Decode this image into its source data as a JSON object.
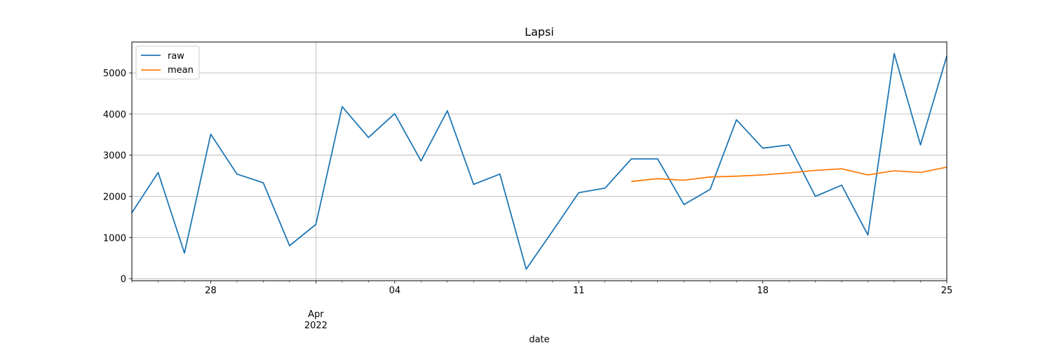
{
  "chart_data": {
    "type": "line",
    "title": "Lapsi",
    "xlabel": "date",
    "ylabel": "",
    "ylim": [
      -50,
      5750
    ],
    "yticks": [
      0,
      1000,
      2000,
      3000,
      4000,
      5000
    ],
    "x": [
      "2022-03-25",
      "2022-03-26",
      "2022-03-27",
      "2022-03-28",
      "2022-03-29",
      "2022-03-30",
      "2022-03-31",
      "2022-04-01",
      "2022-04-02",
      "2022-04-03",
      "2022-04-04",
      "2022-04-05",
      "2022-04-06",
      "2022-04-07",
      "2022-04-08",
      "2022-04-09",
      "2022-04-10",
      "2022-04-11",
      "2022-04-12",
      "2022-04-13",
      "2022-04-14",
      "2022-04-15",
      "2022-04-16",
      "2022-04-17",
      "2022-04-18",
      "2022-04-19",
      "2022-04-20",
      "2022-04-21",
      "2022-04-22",
      "2022-04-23",
      "2022-04-24",
      "2022-04-25"
    ],
    "xticks_major": [
      {
        "index": 3,
        "label": "28"
      },
      {
        "index": 7,
        "label": "Apr",
        "sublabel": "2022"
      },
      {
        "index": 10,
        "label": "04"
      },
      {
        "index": 17,
        "label": "11"
      },
      {
        "index": 24,
        "label": "18"
      },
      {
        "index": 31,
        "label": "25"
      }
    ],
    "vertical_gridline_index": 7,
    "grid": "y",
    "legend": {
      "location": "upper-left",
      "entries": [
        "raw",
        "mean"
      ]
    },
    "series": [
      {
        "name": "raw",
        "color": "#1f77b4",
        "values": [
          1600,
          2580,
          620,
          3510,
          2540,
          2330,
          800,
          1320,
          4180,
          3430,
          4010,
          2860,
          4080,
          2290,
          2540,
          230,
          1150,
          2090,
          2200,
          2910,
          2910,
          1800,
          2170,
          3860,
          3170,
          3250,
          2000,
          2270,
          1060,
          5470,
          3250,
          5410
        ]
      },
      {
        "name": "mean",
        "color": "#ff7f0e",
        "values": [
          null,
          null,
          null,
          null,
          null,
          null,
          null,
          null,
          null,
          null,
          null,
          null,
          null,
          null,
          null,
          null,
          null,
          null,
          null,
          2360,
          2430,
          2390,
          2470,
          2490,
          2520,
          2570,
          2630,
          2670,
          2520,
          2620,
          2580,
          2710
        ]
      }
    ]
  }
}
